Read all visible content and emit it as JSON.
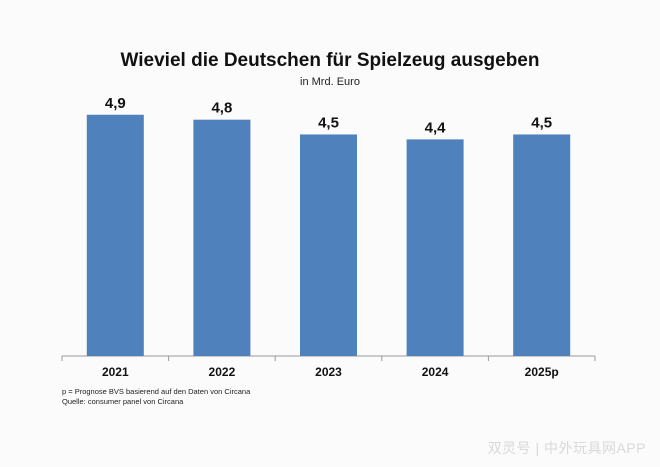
{
  "chart_data": {
    "type": "bar",
    "title": "Wieviel die Deutschen für Spielzeug ausgeben",
    "subtitle": "in Mrd. Euro",
    "categories": [
      "2021",
      "2022",
      "2023",
      "2024",
      "2025p"
    ],
    "values": [
      4.9,
      4.8,
      4.5,
      4.4,
      4.5
    ],
    "data_labels": [
      "4,9",
      "4,8",
      "4,5",
      "4,4",
      "4,5"
    ],
    "ylim": [
      0,
      5.2
    ],
    "grid": false,
    "bar_color": "#4f81bd"
  },
  "notes": {
    "line1": "p = Prognose BVS basierend auf den Daten von Circana",
    "line2": "Quelle: consumer panel von Circana"
  },
  "watermark": "双灵号 | 中外玩具网APP"
}
